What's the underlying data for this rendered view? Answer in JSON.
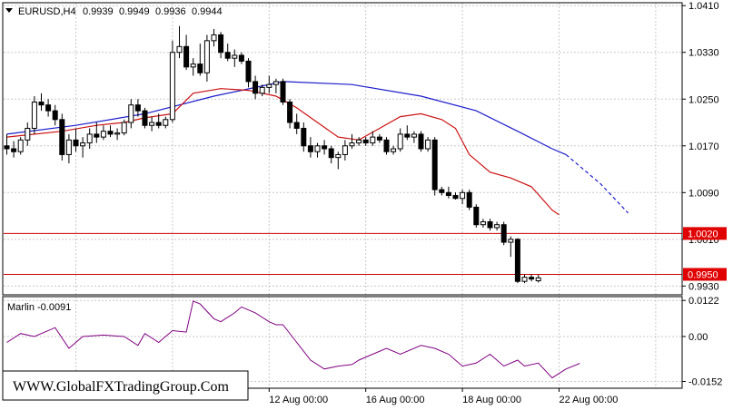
{
  "header": {
    "symbol": "EURUSD,H4",
    "open": "0.9939",
    "high": "0.9949",
    "low": "0.9936",
    "close": "0.9944"
  },
  "indicator": {
    "label": "Marlin -0.0091"
  },
  "watermark": "WWW.GlobalFXTradingGroup.Com",
  "colors": {
    "grid": "#c8c8c8",
    "axis": "#000000",
    "bull": "#000000",
    "bear": "#000000",
    "ma_blue": "#1c1ccc",
    "ma_red": "#cc1010",
    "level_line": "#cc0000",
    "level_tag": "#e00000",
    "oscillator": "#800080"
  },
  "chart_data": [
    {
      "type": "candlestick",
      "ylim": [
        0.9915,
        1.0415
      ],
      "yticks": [
        "1.0410",
        "1.0330",
        "1.0250",
        "1.0170",
        "1.0090",
        "1.0010",
        "0.9930"
      ],
      "ytick_values": [
        1.041,
        1.033,
        1.025,
        1.017,
        1.009,
        1.001,
        0.993
      ],
      "xlabels": [
        "12 Aug 00:00",
        "16 Aug 00:00",
        "18 Aug 00:00",
        "22 Aug 00:00"
      ],
      "xlabel_bars": [
        38,
        52,
        66,
        80
      ],
      "levels": [
        {
          "label": "1.0020",
          "value": 1.002
        },
        {
          "label": "0.9950",
          "value": 0.995
        }
      ],
      "candles": [
        [
          1.017,
          1.019,
          1.0155,
          1.0165
        ],
        [
          1.0165,
          1.0178,
          1.015,
          1.016
        ],
        [
          1.016,
          1.0185,
          1.0155,
          1.018
        ],
        [
          1.018,
          1.021,
          1.017,
          1.02
        ],
        [
          1.02,
          1.0255,
          1.019,
          1.0245
        ],
        [
          1.0245,
          1.026,
          1.023,
          1.024
        ],
        [
          1.024,
          1.025,
          1.022,
          1.023
        ],
        [
          1.023,
          1.024,
          1.0205,
          1.0215
        ],
        [
          1.0215,
          1.0225,
          1.0145,
          1.0155
        ],
        [
          1.0155,
          1.019,
          1.014,
          1.018
        ],
        [
          1.018,
          1.02,
          1.016,
          1.017
        ],
        [
          1.017,
          1.0185,
          1.015,
          1.0175
        ],
        [
          1.0175,
          1.02,
          1.0165,
          1.019
        ],
        [
          1.019,
          1.021,
          1.0175,
          1.0185
        ],
        [
          1.0185,
          1.0205,
          1.018,
          1.0195
        ],
        [
          1.0195,
          1.0205,
          1.0185,
          1.019
        ],
        [
          1.019,
          1.02,
          1.018,
          1.0192
        ],
        [
          1.0192,
          1.0215,
          1.0188,
          1.021
        ],
        [
          1.021,
          1.025,
          1.02,
          1.024
        ],
        [
          1.024,
          1.025,
          1.022,
          1.023
        ],
        [
          1.023,
          1.0235,
          1.02,
          1.0205
        ],
        [
          1.0205,
          1.022,
          1.0195,
          1.021
        ],
        [
          1.021,
          1.0225,
          1.02,
          1.0205
        ],
        [
          1.0205,
          1.022,
          1.02,
          1.0215
        ],
        [
          1.0215,
          1.035,
          1.021,
          1.033
        ],
        [
          1.033,
          1.0375,
          1.032,
          1.034
        ],
        [
          1.034,
          1.036,
          1.03,
          1.0305
        ],
        [
          1.0305,
          1.032,
          1.029,
          1.031
        ],
        [
          1.031,
          1.0345,
          1.029,
          1.0295
        ],
        [
          1.0295,
          1.036,
          1.028,
          1.035
        ],
        [
          1.035,
          1.037,
          1.034,
          1.036
        ],
        [
          1.036,
          1.0365,
          1.032,
          1.033
        ],
        [
          1.033,
          1.0345,
          1.0315,
          1.032
        ],
        [
          1.032,
          1.0335,
          1.0305,
          1.0325
        ],
        [
          1.0325,
          1.033,
          1.031,
          1.0315
        ],
        [
          1.0315,
          1.032,
          1.027,
          1.028
        ],
        [
          1.028,
          1.029,
          1.025,
          1.026
        ],
        [
          1.026,
          1.0275,
          1.0255,
          1.027
        ],
        [
          1.027,
          1.029,
          1.026,
          1.0275
        ],
        [
          1.0275,
          1.0285,
          1.026,
          1.028
        ],
        [
          1.028,
          1.0285,
          1.024,
          1.0245
        ],
        [
          1.0245,
          1.025,
          1.02,
          1.021
        ],
        [
          1.021,
          1.0225,
          1.019,
          1.02
        ],
        [
          1.02,
          1.021,
          1.016,
          1.017
        ],
        [
          1.017,
          1.0185,
          1.015,
          1.016
        ],
        [
          1.016,
          1.0175,
          1.015,
          1.017
        ],
        [
          1.017,
          1.018,
          1.0155,
          1.0165
        ],
        [
          1.0165,
          1.017,
          1.014,
          1.015
        ],
        [
          1.015,
          1.016,
          1.013,
          1.0155
        ],
        [
          1.0155,
          1.018,
          1.0145,
          1.017
        ],
        [
          1.017,
          1.019,
          1.0165,
          1.0175
        ],
        [
          1.0175,
          1.0185,
          1.017,
          1.018
        ],
        [
          1.018,
          1.0185,
          1.017,
          1.0175
        ],
        [
          1.0175,
          1.0195,
          1.017,
          1.0185
        ],
        [
          1.0185,
          1.019,
          1.0175,
          1.018
        ],
        [
          1.018,
          1.0185,
          1.0155,
          1.016
        ],
        [
          1.016,
          1.017,
          1.0155,
          1.0165
        ],
        [
          1.0165,
          1.02,
          1.016,
          1.019
        ],
        [
          1.019,
          1.0205,
          1.018,
          1.0185
        ],
        [
          1.0185,
          1.0195,
          1.0175,
          1.019
        ],
        [
          1.019,
          1.0195,
          1.016,
          1.0165
        ],
        [
          1.0165,
          1.0185,
          1.016,
          1.018
        ],
        [
          1.018,
          1.0185,
          1.0085,
          1.0095
        ],
        [
          1.0095,
          1.01,
          1.0085,
          1.009
        ],
        [
          1.009,
          1.01,
          1.008,
          1.0085
        ],
        [
          1.0085,
          1.009,
          1.0078,
          1.008
        ],
        [
          1.008,
          1.0095,
          1.007,
          1.009
        ],
        [
          1.009,
          1.0095,
          1.006,
          1.0065
        ],
        [
          1.0065,
          1.007,
          1.003,
          1.0035
        ],
        [
          1.0035,
          1.0045,
          1.003,
          1.004
        ],
        [
          1.004,
          1.0045,
          1.0025,
          1.003
        ],
        [
          1.003,
          1.004,
          1.0025,
          1.0035
        ],
        [
          1.0035,
          1.004,
          1.0,
          1.0005
        ],
        [
          1.0005,
          1.0015,
          0.998,
          1.001
        ],
        [
          1.001,
          1.0012,
          0.9935,
          0.9938
        ],
        [
          0.9938,
          0.995,
          0.9935,
          0.9945
        ],
        [
          0.9945,
          0.995,
          0.9938,
          0.9942
        ],
        [
          0.9939,
          0.9949,
          0.9936,
          0.9944
        ]
      ],
      "ma_blue": {
        "solid": [
          [
            0,
            1.019
          ],
          [
            10,
            1.0205
          ],
          [
            20,
            1.0225
          ],
          [
            30,
            1.0255
          ],
          [
            40,
            1.028
          ],
          [
            50,
            1.0275
          ],
          [
            60,
            1.0255
          ],
          [
            68,
            1.023
          ],
          [
            74,
            1.0195
          ],
          [
            79,
            1.0165
          ],
          [
            81,
            1.0155
          ]
        ],
        "dashed": [
          [
            81,
            1.0155
          ],
          [
            86,
            1.0105
          ],
          [
            90,
            1.0055
          ]
        ]
      },
      "ma_red": [
        [
          0,
          1.0185
        ],
        [
          8,
          1.0195
        ],
        [
          13,
          1.0205
        ],
        [
          17,
          1.021
        ],
        [
          20,
          1.0218
        ],
        [
          24,
          1.0225
        ],
        [
          27,
          1.026
        ],
        [
          31,
          1.0268
        ],
        [
          35,
          1.0265
        ],
        [
          39,
          1.0255
        ],
        [
          42,
          1.0235
        ],
        [
          45,
          1.021
        ],
        [
          48,
          1.0185
        ],
        [
          51,
          1.018
        ],
        [
          54,
          1.02
        ],
        [
          57,
          1.022
        ],
        [
          60,
          1.0225
        ],
        [
          63,
          1.0215
        ],
        [
          65,
          1.02
        ],
        [
          67,
          1.0155
        ],
        [
          70,
          1.0125
        ],
        [
          73,
          1.0115
        ],
        [
          76,
          1.01
        ],
        [
          79,
          1.006
        ],
        [
          80,
          1.0052
        ]
      ]
    },
    {
      "type": "line",
      "name": "Marlin",
      "ylim": [
        -0.0175,
        0.0135
      ],
      "yticks": [
        "0.0122",
        "0.00",
        "-0.0152"
      ],
      "ytick_values": [
        0.0122,
        0.0,
        -0.0152
      ],
      "points": [
        [
          0,
          -0.002
        ],
        [
          2,
          0.001
        ],
        [
          4,
          0.0
        ],
        [
          7,
          0.003
        ],
        [
          9,
          -0.004
        ],
        [
          11,
          0.0
        ],
        [
          14,
          0.0005
        ],
        [
          17,
          0.0
        ],
        [
          19,
          -0.003
        ],
        [
          20,
          0.001
        ],
        [
          22,
          -0.002
        ],
        [
          24,
          0.002
        ],
        [
          26,
          0.0015
        ],
        [
          27,
          0.012
        ],
        [
          28,
          0.011
        ],
        [
          30,
          0.006
        ],
        [
          31,
          0.005
        ],
        [
          33,
          0.008
        ],
        [
          34,
          0.01
        ],
        [
          36,
          0.008
        ],
        [
          38,
          0.005
        ],
        [
          39,
          0.004
        ],
        [
          40,
          0.004
        ],
        [
          42,
          -0.002
        ],
        [
          44,
          -0.008
        ],
        [
          46,
          -0.011
        ],
        [
          48,
          -0.01
        ],
        [
          50,
          -0.0095
        ],
        [
          51,
          -0.008
        ],
        [
          53,
          -0.006
        ],
        [
          55,
          -0.004
        ],
        [
          57,
          -0.006
        ],
        [
          60,
          -0.003
        ],
        [
          62,
          -0.004
        ],
        [
          64,
          -0.006
        ],
        [
          66,
          -0.01
        ],
        [
          68,
          -0.009
        ],
        [
          70,
          -0.006
        ],
        [
          72,
          -0.01
        ],
        [
          74,
          -0.008
        ],
        [
          75,
          -0.01
        ],
        [
          77,
          -0.009
        ],
        [
          79,
          -0.014
        ],
        [
          81,
          -0.011
        ],
        [
          83,
          -0.0091
        ]
      ]
    }
  ]
}
